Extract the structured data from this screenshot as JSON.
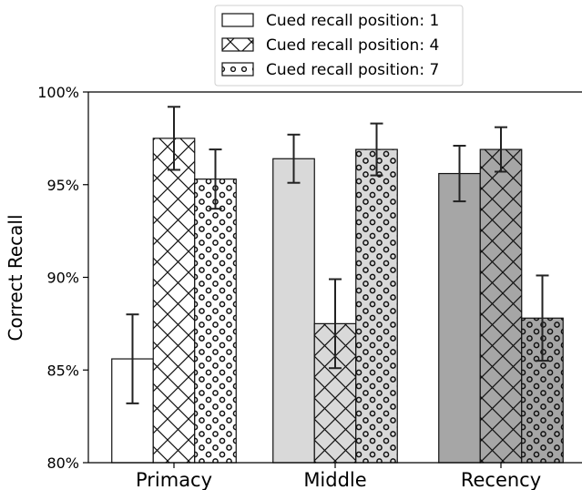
{
  "chart_data": {
    "type": "bar",
    "title": "",
    "xlabel": "",
    "ylabel": "Correct Recall",
    "categories": [
      "Primacy",
      "Middle",
      "Recency"
    ],
    "category_colors": [
      "#ffffff",
      "#d9d9d9",
      "#a6a6a6"
    ],
    "ylim": [
      80,
      100
    ],
    "yticks": [
      {
        "value": 80,
        "label": "80%"
      },
      {
        "value": 85,
        "label": "85%"
      },
      {
        "value": 90,
        "label": "90%"
      },
      {
        "value": 95,
        "label": "95%"
      },
      {
        "value": 100,
        "label": "100%"
      }
    ],
    "series": [
      {
        "name": "Cued recall position: 1",
        "pattern": "none",
        "values": [
          85.6,
          96.4,
          95.6
        ],
        "errors": [
          2.4,
          1.3,
          1.5
        ]
      },
      {
        "name": "Cued recall position: 4",
        "pattern": "crosshatch",
        "values": [
          97.5,
          87.5,
          96.9
        ],
        "errors": [
          1.7,
          2.4,
          1.2
        ]
      },
      {
        "name": "Cued recall position: 7",
        "pattern": "circles",
        "values": [
          95.3,
          96.9,
          87.8
        ],
        "errors": [
          1.6,
          1.4,
          2.3
        ]
      }
    ],
    "legend_position": "top-center",
    "grid": false
  }
}
